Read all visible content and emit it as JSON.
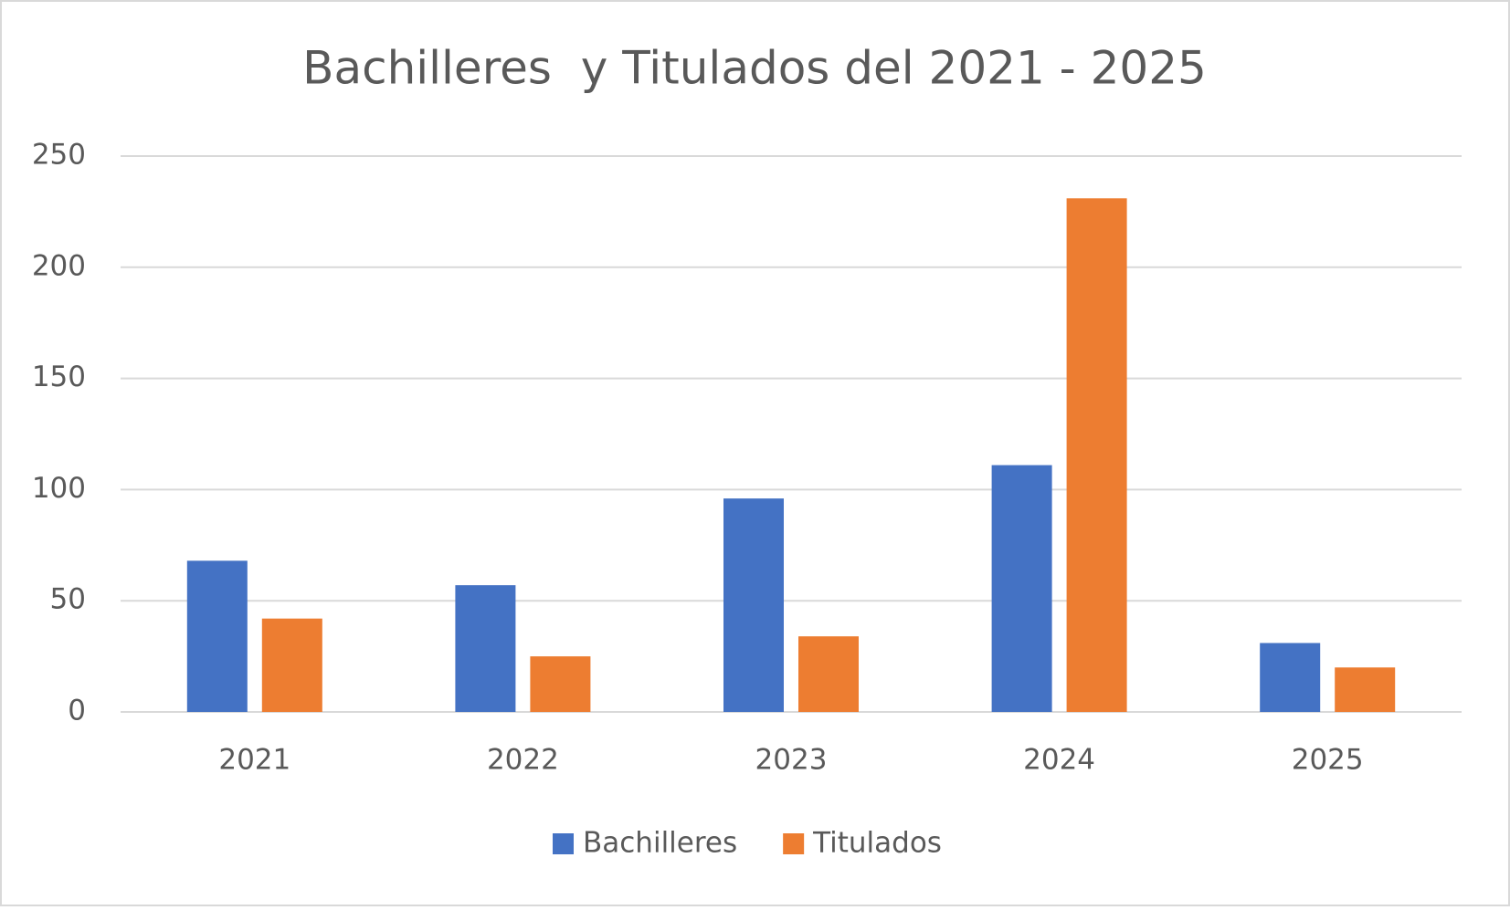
{
  "chart_data": {
    "type": "bar",
    "title": "Bachilleres  y Titulados del 2021 - 2025",
    "categories": [
      "2021",
      "2022",
      "2023",
      "2024",
      "2025"
    ],
    "series": [
      {
        "name": "Bachilleres",
        "color": "#4472c4",
        "values": [
          68,
          57,
          96,
          111,
          31
        ]
      },
      {
        "name": "Titulados",
        "color": "#ed7d31",
        "values": [
          42,
          25,
          34,
          231,
          20
        ]
      }
    ],
    "ylim": [
      0,
      250
    ],
    "yticks": [
      0,
      50,
      100,
      150,
      200,
      250
    ],
    "grid": true,
    "legend": "bottom"
  }
}
